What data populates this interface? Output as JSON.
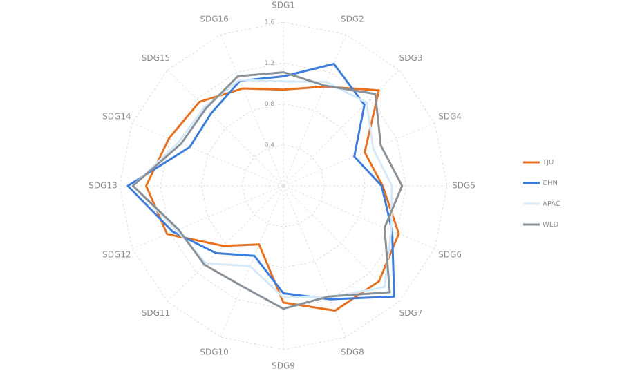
{
  "chart_data": {
    "type": "radar",
    "categories": [
      "SDG1",
      "SDG2",
      "SDG3",
      "SDG4",
      "SDG5",
      "SDG6",
      "SDG7",
      "SDG8",
      "SDG9",
      "SDG10",
      "SDG11",
      "SDG12",
      "SDG13",
      "SDG14",
      "SDG15",
      "SDG16"
    ],
    "ylim": [
      0,
      1.6
    ],
    "yticks": [
      {
        "value": 0,
        "label": "-"
      },
      0.4,
      0.8,
      1.2,
      1.6
    ],
    "grid": true,
    "legend": "right",
    "series": [
      {
        "name": "TJU",
        "color": "#e8711f",
        "values": [
          0.94,
          1.05,
          1.32,
          0.86,
          0.97,
          1.22,
          1.32,
          1.32,
          1.14,
          0.62,
          0.83,
          1.23,
          1.34,
          1.21,
          1.16,
          1.03
        ]
      },
      {
        "name": "CHN",
        "color": "#3b7ddd",
        "values": [
          1.07,
          1.29,
          1.12,
          0.75,
          0.96,
          1.15,
          1.53,
          1.2,
          1.05,
          0.74,
          0.93,
          1.17,
          1.52,
          0.99,
          1.0,
          1.11
        ]
      },
      {
        "name": "APAC",
        "color": "#d6e9f8",
        "values": [
          1.02,
          1.1,
          1.15,
          0.95,
          1.06,
          1.14,
          1.4,
          1.18,
          1.09,
          0.85,
          1.07,
          1.13,
          1.47,
          1.11,
          1.09,
          1.12
        ]
      },
      {
        "name": "WLD",
        "color": "#8a9299",
        "values": [
          1.11,
          1.06,
          1.27,
          1.03,
          1.16,
          1.07,
          1.47,
          1.17,
          1.2,
          1.06,
          1.09,
          1.11,
          1.47,
          1.08,
          1.07,
          1.16
        ]
      }
    ]
  }
}
